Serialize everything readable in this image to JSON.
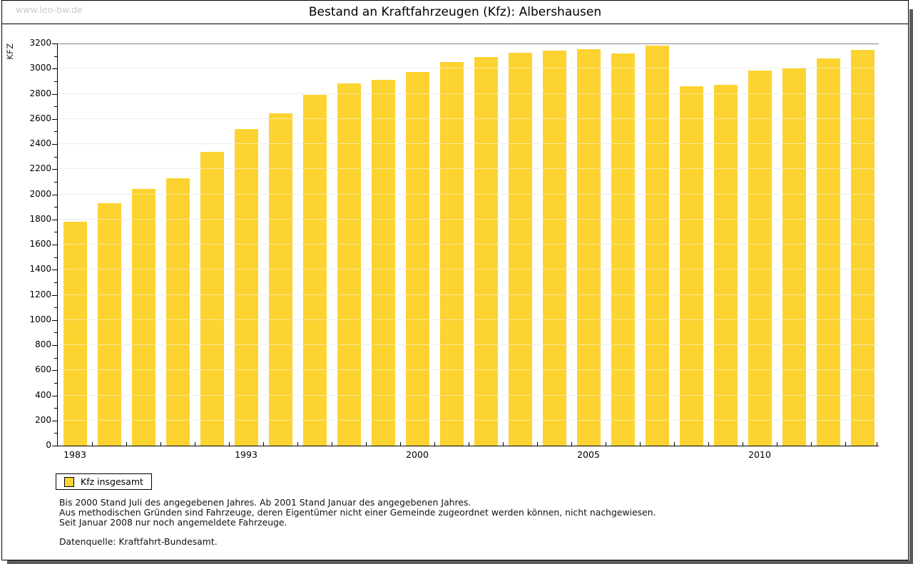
{
  "watermark": "www.leo-bw.de",
  "title": "Bestand an Kraftfahrzeugen (Kfz): Albershausen",
  "legend": {
    "label": "Kfz insgesamt"
  },
  "notes": [
    "Bis 2000 Stand Juli des angegebenen Jahres. Ab 2001 Stand Januar des angegebenen Jahres.",
    "Aus methodischen Gründen sind Fahrzeuge, deren Eigentümer nicht einer Gemeinde zugeordnet werden können, nicht nachgewiesen.",
    "Seit Januar 2008 nur noch angemeldete Fahrzeuge."
  ],
  "datasource": "Datenquelle: Kraftfahrt-Bundesamt.",
  "colors": {
    "bar": "#fcd330",
    "grid": "#dcdcdc",
    "grid_over_bar": "rgba(255,255,255,0.5)",
    "axis": "#000000",
    "plot_top_border": "#888888",
    "watermark": "#c9c9c9",
    "shadow": "#5b5b5b"
  },
  "chart_data": {
    "type": "bar",
    "title": "Bestand an Kraftfahrzeugen (Kfz): Albershausen",
    "xlabel": "",
    "ylabel": "KFZ",
    "ylim": [
      0,
      3200
    ],
    "y_tick_step": 200,
    "y_minor_tick_step": 100,
    "grid": "on",
    "legend_position": "bottom-left",
    "x_tick_labels": [
      {
        "bar_index": 0,
        "label": "1983"
      },
      {
        "bar_index": 5,
        "label": "1993"
      },
      {
        "bar_index": 10,
        "label": "2000"
      },
      {
        "bar_index": 15,
        "label": "2005"
      },
      {
        "bar_index": 20,
        "label": "2010"
      }
    ],
    "series": [
      {
        "name": "Kfz insgesamt",
        "values": [
          1780,
          1930,
          2045,
          2125,
          2340,
          2520,
          2645,
          2790,
          2885,
          2910,
          2975,
          3050,
          3095,
          3125,
          3145,
          3155,
          3120,
          3185,
          2860,
          2870,
          2985,
          3000,
          3080,
          3150
        ]
      }
    ]
  }
}
